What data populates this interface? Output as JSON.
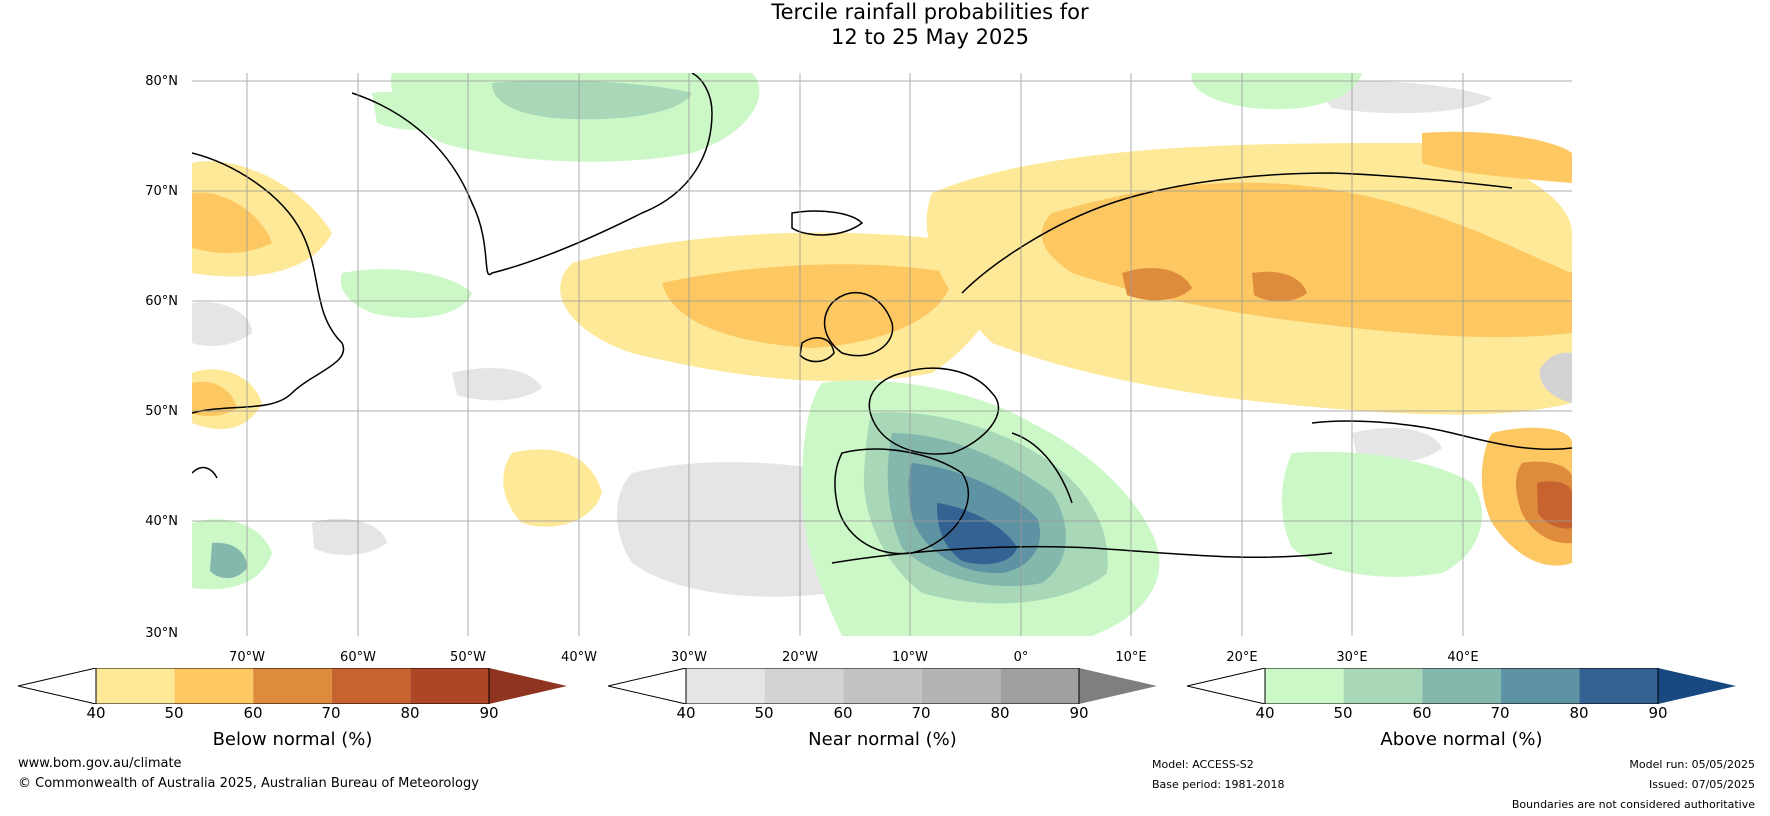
{
  "title": {
    "line1": "Tercile rainfall probabilities for",
    "line2": "12 to 25 May 2025"
  },
  "map": {
    "lat_labels": [
      "80°N",
      "70°N",
      "60°N",
      "50°N",
      "40°N",
      "30°N"
    ],
    "lon_labels": [
      "70°W",
      "60°W",
      "50°W",
      "40°W",
      "30°W",
      "20°W",
      "10°W",
      "0°",
      "10°E",
      "20°E",
      "30°E",
      "40°E"
    ]
  },
  "colorbars": [
    {
      "title": "Below normal (%)",
      "ticks": [
        "40",
        "50",
        "60",
        "70",
        "80",
        "90"
      ],
      "colors": [
        "#ffffff",
        "#fee999",
        "#fdc862",
        "#de8b3d",
        "#c76330",
        "#ad4527",
        "#8f3420"
      ]
    },
    {
      "title": "Near normal (%)",
      "ticks": [
        "40",
        "50",
        "60",
        "70",
        "80",
        "90"
      ],
      "colors": [
        "#ffffff",
        "#e5e5e5",
        "#d3d3d3",
        "#c2c2c2",
        "#b3b3b3",
        "#a0a0a0",
        "#7f7f7f"
      ]
    },
    {
      "title": "Above normal (%)",
      "ticks": [
        "40",
        "50",
        "60",
        "70",
        "80",
        "90"
      ],
      "colors": [
        "#ffffff",
        "#ccf8c8",
        "#a8d8b8",
        "#84b8ad",
        "#5e93a3",
        "#346293",
        "#17487f"
      ]
    }
  ],
  "footer": {
    "website": "www.bom.gov.au/climate",
    "copyright": "© Commonwealth of Australia 2025, Australian Bureau of Meteorology",
    "model": "Model: ACCESS-S2",
    "base_period": "Base period: 1981-2018",
    "model_run": "Model run: 05/05/2025",
    "issued": "Issued: 07/05/2025",
    "disclaimer": "Boundaries are not considered authoritative"
  }
}
